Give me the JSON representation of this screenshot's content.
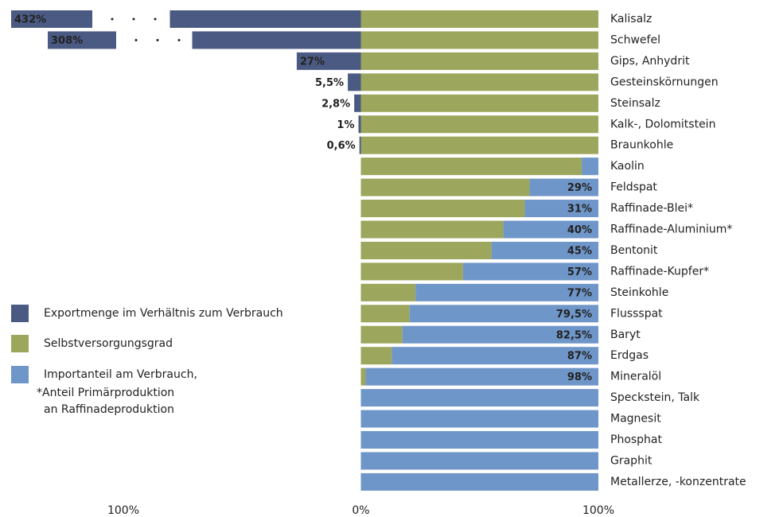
{
  "chart_data": {
    "type": "diverging-bar",
    "categories": [
      "Kalisalz",
      "Schwefel",
      "Gips, Anhydrit",
      "Gesteinskörnungen",
      "Steinsalz",
      "Kalk-, Dolomitstein",
      "Braunkohle",
      "Kaolin",
      "Feldspat",
      "Raffinade-Blei*",
      "Raffinade-Aluminium*",
      "Bentonit",
      "Raffinade-Kupfer*",
      "Steinkohle",
      "Flussspat",
      "Baryt",
      "Erdgas",
      "Mineralöl",
      "Speckstein, Talk",
      "Magnesit",
      "Phosphat",
      "Graphit",
      "Metallerze, -konzentrate"
    ],
    "series": [
      {
        "name": "Exportmenge im Verhältnis zum Verbrauch",
        "color": "#4b5a82",
        "direction": "left",
        "values": [
          432,
          308,
          27,
          5.5,
          2.8,
          1,
          0.6,
          null,
          null,
          null,
          null,
          null,
          null,
          null,
          null,
          null,
          null,
          null,
          null,
          null,
          null,
          null,
          null
        ],
        "value_labels": [
          "432%",
          "308%",
          "27%",
          "5,5%",
          "2,8%",
          "1%",
          "0,6%",
          null,
          null,
          null,
          null,
          null,
          null,
          null,
          null,
          null,
          null,
          null,
          null,
          null,
          null,
          null,
          null
        ]
      },
      {
        "name": "Selbstversorgungsgrad",
        "color": "#9ca65c",
        "direction": "right",
        "values": [
          100,
          100,
          100,
          100,
          100,
          100,
          100,
          93,
          71,
          69,
          60,
          55,
          43,
          23,
          20.5,
          17.5,
          13,
          2,
          0,
          0,
          0,
          0,
          0
        ]
      },
      {
        "name": "Importanteil am Verbrauch,",
        "color": "#6f96c8",
        "direction": "right",
        "values": [
          0,
          0,
          0,
          0,
          0,
          0,
          0,
          7,
          29,
          31,
          40,
          45,
          57,
          77,
          79.5,
          82.5,
          87,
          98,
          100,
          100,
          100,
          100,
          100
        ],
        "value_labels": [
          null,
          null,
          null,
          null,
          null,
          null,
          null,
          null,
          "29%",
          "31%",
          "40%",
          "45%",
          "57%",
          "77%",
          "79,5%",
          "82,5%",
          "87%",
          "98%",
          null,
          null,
          null,
          null,
          null
        ]
      }
    ],
    "note": [
      "*Anteil Primärproduktion",
      "an Raffinadeproduktion"
    ],
    "xlim": [
      -100,
      100
    ],
    "xticks": [
      {
        "value": -100,
        "label": "100%"
      },
      {
        "value": 0,
        "label": "0%"
      },
      {
        "value": 100,
        "label": "100%"
      }
    ]
  }
}
